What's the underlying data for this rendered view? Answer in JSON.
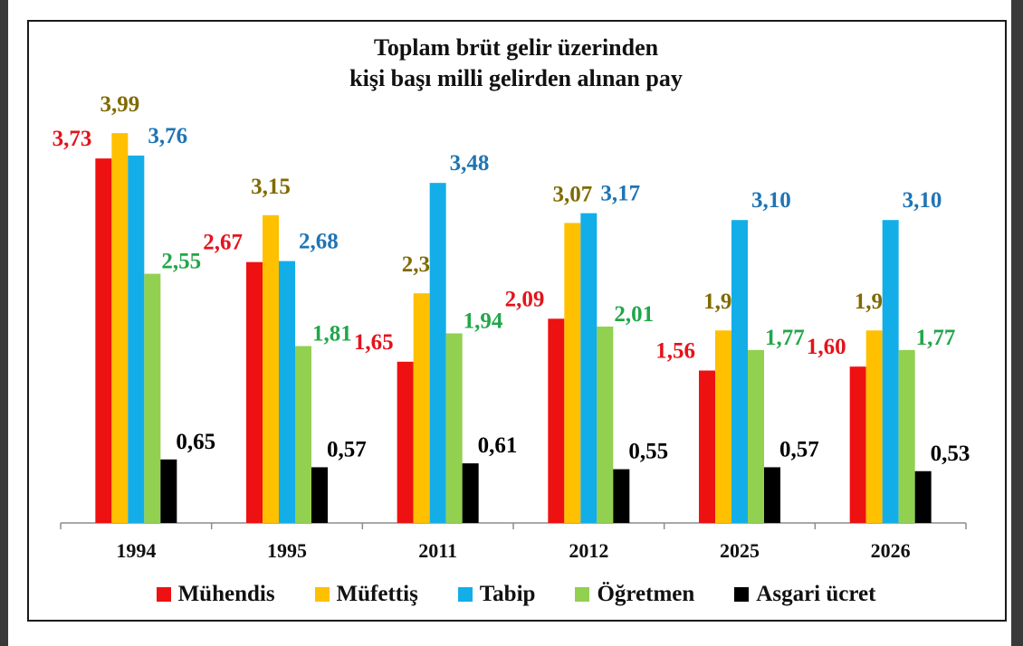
{
  "chart_data": {
    "type": "bar",
    "title_line1": "Toplam brüt gelir üzerinden",
    "title_line2": "kişi başı milli gelirden alınan pay",
    "categories": [
      "1994",
      "1995",
      "2011",
      "2012",
      "2025",
      "2026"
    ],
    "ylim": [
      0,
      4.5
    ],
    "grid": false,
    "legend_position": "bottom",
    "series": [
      {
        "name": "Mühendis",
        "color": "#ee1111",
        "label_color": "#e4131b",
        "values": [
          3.73,
          2.67,
          1.65,
          2.09,
          1.56,
          1.6
        ],
        "labels": [
          "3,73",
          "2,67",
          "1,65",
          "2,09",
          "1,56",
          "1,60"
        ]
      },
      {
        "name": "Müfettiş",
        "color": "#ffc000",
        "label_color": "#7f6a00",
        "values": [
          3.99,
          3.15,
          2.35,
          3.07,
          1.97,
          1.97
        ],
        "labels": [
          "3,99",
          "3,15",
          "2,35",
          "3,07",
          "1,97",
          "1,97"
        ]
      },
      {
        "name": "Tabip",
        "color": "#13aee8",
        "label_color": "#1f74b5",
        "values": [
          3.76,
          2.68,
          3.48,
          3.17,
          3.1,
          3.1
        ],
        "labels": [
          "3,76",
          "2,68",
          "3,48",
          "3,17",
          "3,10",
          "3,10"
        ]
      },
      {
        "name": "Öğretmen",
        "color": "#92d050",
        "label_color": "#22a64a",
        "values": [
          2.55,
          1.81,
          1.94,
          2.01,
          1.77,
          1.77
        ],
        "labels": [
          "2,55",
          "1,81",
          "1,94",
          "2,01",
          "1,77",
          "1,77"
        ]
      },
      {
        "name": "Asgari ücret",
        "color": "#000000",
        "label_color": "#000000",
        "values": [
          0.65,
          0.57,
          0.61,
          0.55,
          0.57,
          0.53
        ],
        "labels": [
          "0,65",
          "0,57",
          "0,61",
          "0,55",
          "0,57",
          "0,53"
        ]
      }
    ]
  }
}
